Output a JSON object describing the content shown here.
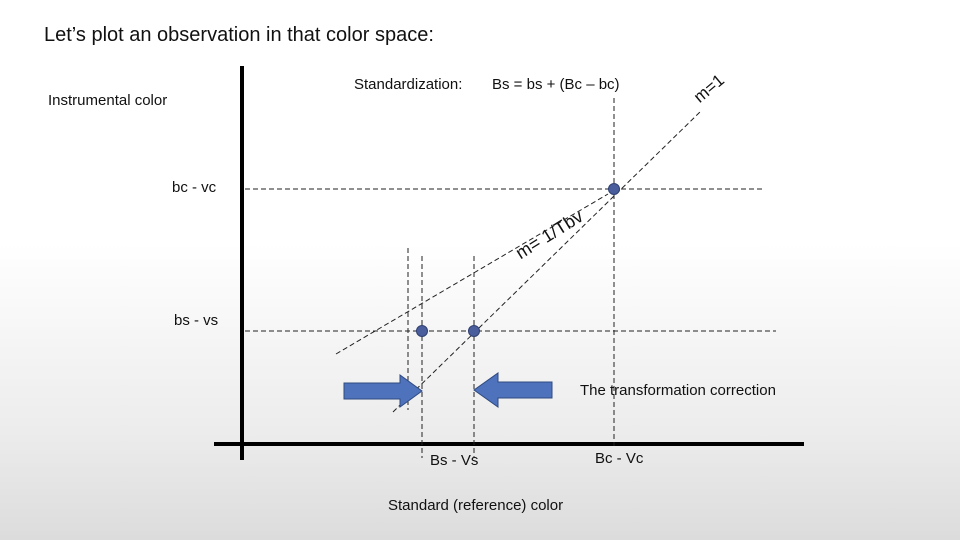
{
  "title": "Let’s plot an observation in that color space:",
  "y_axis_label": "Instrumental color",
  "x_axis_label": "Standard (reference) color",
  "standardization": {
    "label": "Standardization:",
    "formula": "Bs = bs + (Bc – bc)"
  },
  "labels": {
    "bc_vc": "bc - vc",
    "bs_vs": "bs - vs",
    "Bs_Vs": "Bs - Vs",
    "Bc_Vc": "Bc - Vc",
    "correction": "The transformation correction"
  },
  "slopes": {
    "unit": "m=1",
    "tbv": "m= 1/Tbv"
  },
  "colors": {
    "point": "#4a5e9e",
    "arrow_fill": "#4f72bd",
    "arrow_stroke": "#2f4a80",
    "axis": "#000000",
    "dashed": "#222222"
  }
}
